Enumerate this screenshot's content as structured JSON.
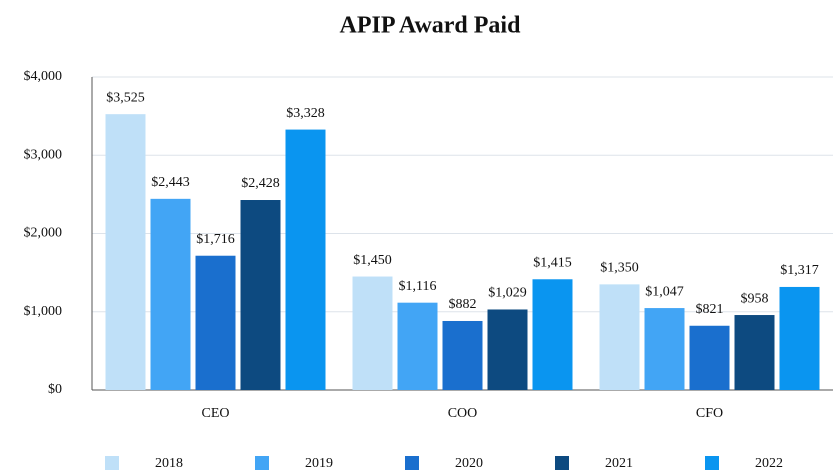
{
  "chart_data": {
    "type": "bar",
    "title": "APIP Award Paid",
    "categories": [
      "CEO",
      "COO",
      "CFO"
    ],
    "series": [
      {
        "name": "2018",
        "color": "#bfe0f8",
        "values": [
          3525,
          1450,
          1350
        ],
        "value_labels": [
          "$3,525",
          "$1,450",
          "$1,350"
        ]
      },
      {
        "name": "2019",
        "color": "#42a5f5",
        "values": [
          2443,
          1116,
          1047
        ],
        "value_labels": [
          "$2,443",
          "$1,116",
          "$1,047"
        ]
      },
      {
        "name": "2020",
        "color": "#1a6fce",
        "values": [
          1716,
          882,
          821
        ],
        "value_labels": [
          "$1,716",
          "$882",
          "$821"
        ]
      },
      {
        "name": "2021",
        "color": "#0d4a80",
        "values": [
          2428,
          1029,
          958
        ],
        "value_labels": [
          "$2,428",
          "$1,029",
          "$958"
        ]
      },
      {
        "name": "2022",
        "color": "#0a95f0",
        "values": [
          3328,
          1415,
          1317
        ],
        "value_labels": [
          "$3,328",
          "$1,415",
          "$1,317"
        ]
      }
    ],
    "ylim": [
      0,
      4000
    ],
    "yticks": [
      {
        "value": 0,
        "label": "$0"
      },
      {
        "value": 1000,
        "label": "$1,000"
      },
      {
        "value": 2000,
        "label": "$2,000"
      },
      {
        "value": 3000,
        "label": "$3,000"
      },
      {
        "value": 4000,
        "label": "$4,000"
      }
    ],
    "grid": true,
    "legend": "bottom"
  }
}
